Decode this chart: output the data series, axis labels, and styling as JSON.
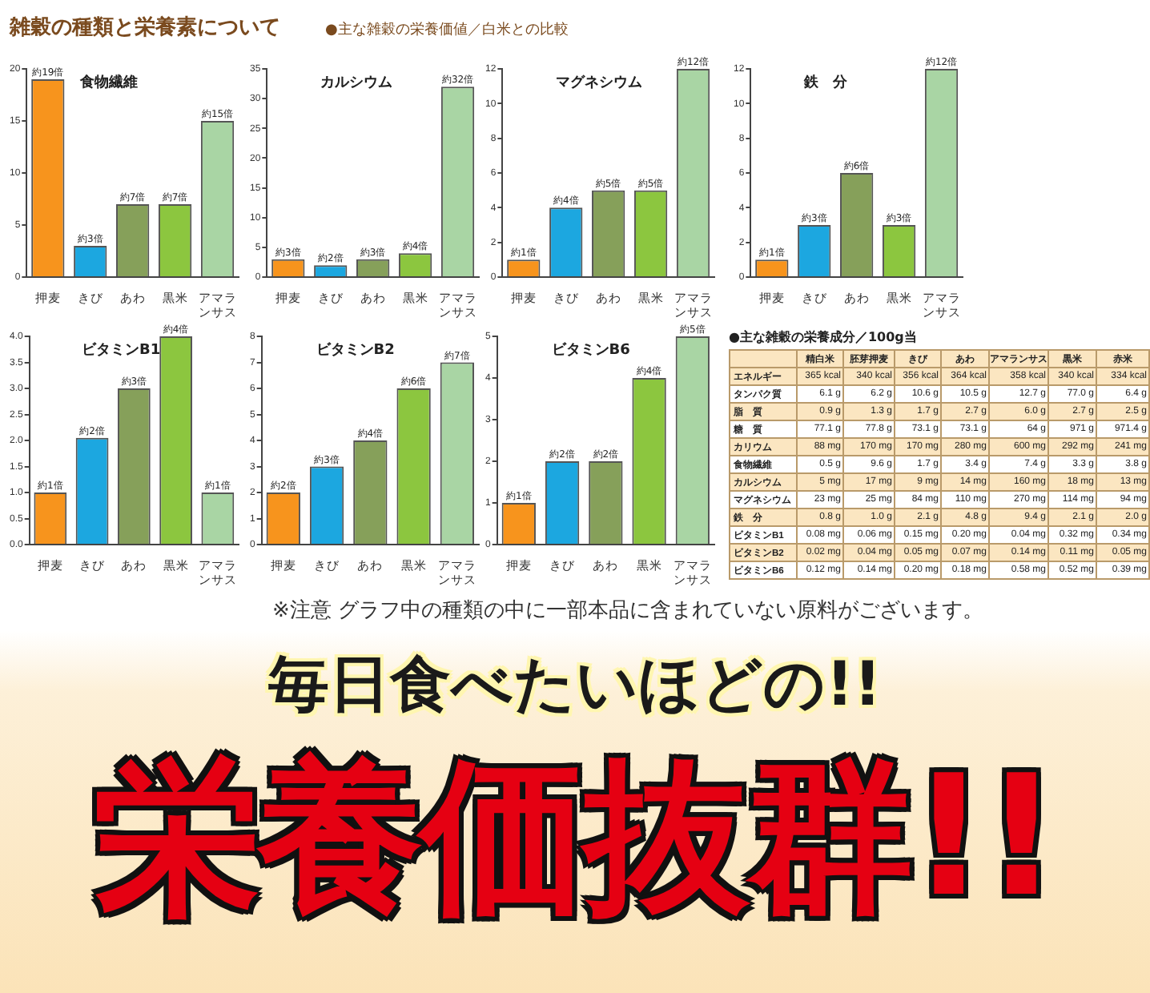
{
  "chart_data": [
    {
      "type": "other",
      "title": "雑穀の種類と栄養素について",
      "subtitle": "●主な雑穀の栄養価値／白米との比較"
    },
    {
      "type": "bar",
      "title": "食物繊維",
      "categories": [
        "押麦",
        "きび",
        "あわ",
        "黒米",
        "アマランサス"
      ],
      "values": [
        19,
        3,
        7,
        7,
        15
      ],
      "colors": [
        "#f7941d",
        "#1ca7e0",
        "#86a05a",
        "#8cc63f",
        "#a9d5a4"
      ],
      "value_labels": [
        "約19倍",
        "約3倍",
        "約7倍",
        "約7倍",
        "約15倍"
      ],
      "ylim": [
        0,
        20
      ],
      "yticks": [
        0,
        5,
        10,
        15,
        20
      ]
    },
    {
      "type": "bar",
      "title": "カルシウム",
      "categories": [
        "押麦",
        "きび",
        "あわ",
        "黒米",
        "アマランサス"
      ],
      "values": [
        3,
        2,
        3,
        4,
        32
      ],
      "colors": [
        "#f7941d",
        "#1ca7e0",
        "#86a05a",
        "#8cc63f",
        "#a9d5a4"
      ],
      "value_labels": [
        "約3倍",
        "約2倍",
        "約3倍",
        "約4倍",
        "約32倍"
      ],
      "ylim": [
        0,
        35
      ],
      "yticks": [
        0,
        5,
        10,
        15,
        20,
        25,
        30,
        35
      ]
    },
    {
      "type": "bar",
      "title": "マグネシウム",
      "categories": [
        "押麦",
        "きび",
        "あわ",
        "黒米",
        "アマランサス"
      ],
      "values": [
        1,
        4,
        5,
        5,
        12
      ],
      "colors": [
        "#f7941d",
        "#1ca7e0",
        "#86a05a",
        "#8cc63f",
        "#a9d5a4"
      ],
      "value_labels": [
        "約1倍",
        "約4倍",
        "約5倍",
        "約5倍",
        "約12倍"
      ],
      "ylim": [
        0,
        12
      ],
      "yticks": [
        0,
        2,
        4,
        6,
        8,
        10,
        12
      ]
    },
    {
      "type": "bar",
      "title": "鉄　分",
      "categories": [
        "押麦",
        "きび",
        "あわ",
        "黒米",
        "アマランサス"
      ],
      "values": [
        1,
        3,
        6,
        3,
        12
      ],
      "colors": [
        "#f7941d",
        "#1ca7e0",
        "#86a05a",
        "#8cc63f",
        "#a9d5a4"
      ],
      "value_labels": [
        "約1倍",
        "約3倍",
        "約6倍",
        "約3倍",
        "約12倍"
      ],
      "ylim": [
        0,
        12
      ],
      "yticks": [
        0,
        2,
        4,
        6,
        8,
        10,
        12
      ]
    },
    {
      "type": "bar",
      "title": "ビタミンB1",
      "categories": [
        "押麦",
        "きび",
        "あわ",
        "黒米",
        "アマランサス"
      ],
      "values": [
        1,
        2.05,
        3,
        4,
        1
      ],
      "colors": [
        "#f7941d",
        "#1ca7e0",
        "#86a05a",
        "#8cc63f",
        "#a9d5a4"
      ],
      "value_labels": [
        "約1倍",
        "約2倍",
        "約3倍",
        "約4倍",
        "約1倍"
      ],
      "ylim": [
        0,
        4
      ],
      "yticks": [
        {
          "value": 0,
          "label": "0.0"
        },
        0.5,
        {
          "value": 1,
          "label": "1.0"
        },
        1.5,
        {
          "value": 2,
          "label": "2.0"
        },
        2.5,
        {
          "value": 3,
          "label": "3.0"
        },
        3.5,
        {
          "value": 4,
          "label": "4.0"
        }
      ]
    },
    {
      "type": "bar",
      "title": "ビタミンB2",
      "categories": [
        "押麦",
        "きび",
        "あわ",
        "黒米",
        "アマランサス"
      ],
      "values": [
        2,
        3,
        4,
        6,
        7
      ],
      "colors": [
        "#f7941d",
        "#1ca7e0",
        "#86a05a",
        "#8cc63f",
        "#a9d5a4"
      ],
      "value_labels": [
        "約2倍",
        "約3倍",
        "約4倍",
        "約6倍",
        "約7倍"
      ],
      "ylim": [
        0,
        8
      ],
      "yticks": [
        0,
        1,
        2,
        3,
        4,
        5,
        6,
        7,
        8
      ]
    },
    {
      "type": "bar",
      "title": "ビタミンB6",
      "categories": [
        "押麦",
        "きび",
        "あわ",
        "黒米",
        "アマランサス"
      ],
      "values": [
        1,
        2,
        2,
        4,
        5
      ],
      "colors": [
        "#f7941d",
        "#1ca7e0",
        "#86a05a",
        "#8cc63f",
        "#a9d5a4"
      ],
      "value_labels": [
        "約1倍",
        "約2倍",
        "約2倍",
        "約4倍",
        "約5倍"
      ],
      "ylim": [
        0,
        5
      ],
      "yticks": [
        0,
        1,
        2,
        3,
        4,
        5
      ]
    },
    {
      "type": "other",
      "title": "●主な雑穀の栄養成分／100g当",
      "categories": [
        "精白米",
        "胚芽押麦",
        "きび",
        "あわ",
        "アマランサス",
        "黒米",
        "赤米"
      ],
      "y_categories": [
        "エネルギー",
        "タンパク質",
        "脂　質",
        "糖　質",
        "カリウム",
        "食物繊維",
        "カルシウム",
        "マグネシウム",
        "鉄　分",
        "ビタミンB1",
        "ビタミンB2",
        "ビタミンB6"
      ],
      "cell_labels": [
        [
          "365 kcal",
          "340 kcal",
          "356 kcal",
          "364 kcal",
          "358 kcal",
          "340 kcal",
          "334 kcal"
        ],
        [
          "6.1 g",
          "6.2 g",
          "10.6 g",
          "10.5 g",
          "12.7 g",
          "77.0 g",
          "6.4 g"
        ],
        [
          "0.9 g",
          "1.3 g",
          "1.7 g",
          "2.7 g",
          "6.0 g",
          "2.7 g",
          "2.5 g"
        ],
        [
          "77.1 g",
          "77.8 g",
          "73.1 g",
          "73.1 g",
          "64 g",
          "971 g",
          "971.4 g"
        ],
        [
          "88 mg",
          "170 mg",
          "170 mg",
          "280 mg",
          "600 mg",
          "292 mg",
          "241 mg"
        ],
        [
          "0.5 g",
          "9.6 g",
          "1.7 g",
          "3.4 g",
          "7.4 g",
          "3.3 g",
          "3.8 g"
        ],
        [
          "5 mg",
          "17 mg",
          "9 mg",
          "14 mg",
          "160 mg",
          "18 mg",
          "13 mg"
        ],
        [
          "23 mg",
          "25 mg",
          "84 mg",
          "110 mg",
          "270 mg",
          "114 mg",
          "94 mg"
        ],
        [
          "0.8 g",
          "1.0 g",
          "2.1 g",
          "4.8 g",
          "9.4 g",
          "2.1 g",
          "2.0 g"
        ],
        [
          "0.08 mg",
          "0.06 mg",
          "0.15 mg",
          "0.20 mg",
          "0.04 mg",
          "0.32 mg",
          "0.34 mg"
        ],
        [
          "0.02 mg",
          "0.04 mg",
          "0.05 mg",
          "0.07 mg",
          "0.14 mg",
          "0.11 mg",
          "0.05 mg"
        ],
        [
          "0.12 mg",
          "0.14 mg",
          "0.20 mg",
          "0.18 mg",
          "0.58 mg",
          "0.52 mg",
          "0.39 mg"
        ]
      ]
    },
    {
      "type": "other",
      "annotations": [
        "※注意 グラフ中の種類の中に一部本品に含まれていない原料がございます。",
        "毎日食べたいほどの!!",
        "栄養価抜群!!"
      ]
    }
  ]
}
